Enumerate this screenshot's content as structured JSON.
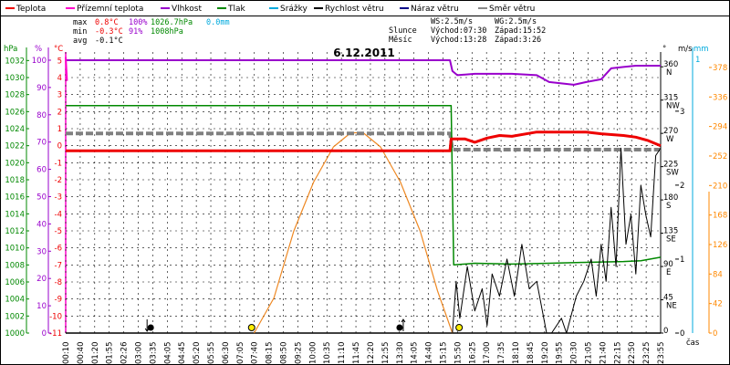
{
  "legend": [
    {
      "label": "Teplota",
      "color": "#ee0000"
    },
    {
      "label": "Přízemní teplota",
      "color": "#ff00cc"
    },
    {
      "label": "Vlhkost",
      "color": "#9900cc"
    },
    {
      "label": "Tlak",
      "color": "#008800"
    },
    {
      "label": "Srážky",
      "color": "#00aadd"
    },
    {
      "label": "Rychlost větru",
      "color": "#000000"
    },
    {
      "label": "Náraz větru",
      "color": "#000088"
    },
    {
      "label": "Směr větru",
      "color": "#888888"
    }
  ],
  "stats": {
    "max_label": "max",
    "max_temp": "0.8°C",
    "max_hum": "100%",
    "max_press": "1026.7hPa",
    "max_rain": "0.0mm",
    "min_label": "min",
    "min_temp": "-0.3°C",
    "min_hum": "91%",
    "min_press": "1008hPa",
    "avg_label": "avg",
    "avg_temp": "-0.1°C"
  },
  "wind_info": {
    "ws": "WS:2.5m/s",
    "wg": "WG:2.5m/s"
  },
  "sun_info": {
    "label": "Slunce",
    "rise": "Východ:07:30",
    "set": "Západ:15:52"
  },
  "moon_info": {
    "label": "Měsíc",
    "rise": "Východ:13:28",
    "set": "Západ:3:26"
  },
  "chart_data": {
    "type": "line",
    "title": "6.12.2011",
    "xlabel": "čas",
    "x_ticks": [
      "00:10",
      "00:40",
      "01:20",
      "01:55",
      "02:26",
      "03:00",
      "03:35",
      "04:05",
      "04:45",
      "05:20",
      "05:55",
      "06:30",
      "07:05",
      "07:40",
      "08:15",
      "08:50",
      "09:25",
      "10:00",
      "10:35",
      "11:10",
      "11:45",
      "12:20",
      "12:55",
      "13:30",
      "14:05",
      "14:40",
      "15:15",
      "15:50",
      "16:25",
      "17:00",
      "17:35",
      "18:10",
      "18:45",
      "19:20",
      "19:55",
      "20:30",
      "21:05",
      "21:40",
      "22:15",
      "22:50",
      "23:25",
      "23:55"
    ],
    "axis_hpa": {
      "unit": "hPa",
      "ticks": [
        "1032",
        "1030",
        "1028",
        "1026",
        "1024",
        "1022",
        "1020",
        "1018",
        "1016",
        "1014",
        "1012",
        "1010",
        "1008",
        "1006",
        "1004",
        "1002",
        "1000"
      ]
    },
    "axis_pct": {
      "unit": "%",
      "ticks": [
        "100",
        "90",
        "80",
        "70",
        "60",
        "50",
        "40",
        "30",
        "20",
        "10",
        "0"
      ]
    },
    "axis_temp": {
      "unit": "°C",
      "ticks": [
        "5",
        "4",
        "3",
        "2",
        "1",
        "0",
        "-1",
        "-2",
        "-3",
        "-4",
        "-5",
        "-6",
        "-7",
        "-8",
        "-9",
        "-10",
        "-11"
      ]
    },
    "axis_dir": {
      "unit": "°",
      "ticks": [
        {
          "deg": "360",
          "dir": "N"
        },
        {
          "deg": "315",
          "dir": "NW"
        },
        {
          "deg": "270",
          "dir": "W"
        },
        {
          "deg": "225",
          "dir": "SW"
        },
        {
          "deg": "180",
          "dir": "S"
        },
        {
          "deg": "135",
          "dir": "SE"
        },
        {
          "deg": "90",
          "dir": "E"
        },
        {
          "deg": "45",
          "dir": "NE"
        },
        {
          "deg": "0",
          "dir": ""
        }
      ]
    },
    "axis_ms": {
      "unit": "m/s",
      "ticks": [
        "3",
        "2",
        "1",
        "0"
      ]
    },
    "axis_mm": {
      "unit": "mm",
      "ticks": [
        "1"
      ]
    },
    "axis_rad": {
      "ticks": [
        "378",
        "336",
        "294",
        "252",
        "210",
        "168",
        "126",
        "84",
        "42",
        "0"
      ]
    },
    "series": [
      {
        "name": "Teplota",
        "points": [
          [
            0,
            -0.3
          ],
          [
            15.5,
            -0.3
          ],
          [
            15.55,
            0.4
          ],
          [
            16.1,
            0.4
          ],
          [
            16.5,
            0.2
          ],
          [
            17.0,
            0.45
          ],
          [
            17.5,
            0.6
          ],
          [
            18.0,
            0.55
          ],
          [
            19.0,
            0.8
          ],
          [
            20.0,
            0.8
          ],
          [
            21.0,
            0.8
          ],
          [
            21.6,
            0.7
          ],
          [
            22.5,
            0.6
          ],
          [
            23.0,
            0.5
          ],
          [
            23.5,
            0.3
          ],
          [
            24,
            0.0
          ]
        ]
      },
      {
        "name": "Přízemní teplota",
        "points": [
          [
            0,
            5.2
          ],
          [
            0.05,
            3.8
          ]
        ]
      },
      {
        "name": "Vlhkost",
        "points": [
          [
            0,
            100
          ],
          [
            15.5,
            100
          ],
          [
            15.6,
            96
          ],
          [
            15.8,
            94.5
          ],
          [
            16.5,
            95
          ],
          [
            17.0,
            95
          ],
          [
            18.0,
            95
          ],
          [
            19.0,
            94.5
          ],
          [
            19.5,
            92
          ],
          [
            20.0,
            91.5
          ],
          [
            20.5,
            91
          ],
          [
            21.0,
            92
          ],
          [
            21.6,
            93
          ],
          [
            22.0,
            97
          ],
          [
            22.5,
            97.5
          ],
          [
            23.0,
            98
          ],
          [
            24,
            98
          ]
        ]
      },
      {
        "name": "Tlak",
        "points": [
          [
            0,
            1026.7
          ],
          [
            15.55,
            1026.7
          ],
          [
            15.65,
            1008
          ],
          [
            16.5,
            1008.2
          ],
          [
            18.0,
            1008.1
          ],
          [
            19.5,
            1008.2
          ],
          [
            21.0,
            1008.3
          ],
          [
            22.5,
            1008.4
          ],
          [
            23.2,
            1008.5
          ],
          [
            24,
            1008.9
          ]
        ]
      },
      {
        "name": "Rychlost větru",
        "points": [
          [
            15.6,
            0
          ],
          [
            15.75,
            0.7
          ],
          [
            15.9,
            0.2
          ],
          [
            16.2,
            0.9
          ],
          [
            16.5,
            0.3
          ],
          [
            16.8,
            0.6
          ],
          [
            17.0,
            0.1
          ],
          [
            17.2,
            0.8
          ],
          [
            17.5,
            0.5
          ],
          [
            17.8,
            1.0
          ],
          [
            18.1,
            0.5
          ],
          [
            18.4,
            1.2
          ],
          [
            18.7,
            0.6
          ],
          [
            19.0,
            0.7
          ],
          [
            19.4,
            0
          ],
          [
            19.6,
            0
          ],
          [
            20.0,
            0.2
          ],
          [
            20.2,
            0
          ],
          [
            20.6,
            0.5
          ],
          [
            20.9,
            0.7
          ],
          [
            21.2,
            1.0
          ],
          [
            21.4,
            0.5
          ],
          [
            21.6,
            1.2
          ],
          [
            21.8,
            0.7
          ],
          [
            22.0,
            1.7
          ],
          [
            22.2,
            0.9
          ],
          [
            22.4,
            2.5
          ],
          [
            22.6,
            1.2
          ],
          [
            22.8,
            1.6
          ],
          [
            23.0,
            0.8
          ],
          [
            23.2,
            2.0
          ],
          [
            23.4,
            1.6
          ],
          [
            23.6,
            1.3
          ],
          [
            23.8,
            2.4
          ],
          [
            24,
            2.5
          ]
        ]
      },
      {
        "name": "Směr větru",
        "points": [
          [
            0,
            270
          ],
          [
            15.5,
            270
          ],
          [
            15.6,
            248
          ],
          [
            24,
            248
          ]
        ]
      },
      {
        "name": "Radiace",
        "points": [
          [
            7.6,
            0
          ],
          [
            8.4,
            50
          ],
          [
            9.2,
            145
          ],
          [
            10.0,
            215
          ],
          [
            10.8,
            265
          ],
          [
            11.5,
            285
          ],
          [
            12.0,
            285
          ],
          [
            12.7,
            265
          ],
          [
            13.5,
            215
          ],
          [
            14.3,
            145
          ],
          [
            15.0,
            60
          ],
          [
            15.6,
            0
          ]
        ]
      }
    ],
    "events": [
      {
        "kind": "moonset",
        "time": "03:26",
        "x": 3.43
      },
      {
        "kind": "sunrise",
        "time": "07:30",
        "x": 7.5
      },
      {
        "kind": "moonrise",
        "time": "13:28",
        "x": 13.47
      },
      {
        "kind": "sunset",
        "time": "15:52",
        "x": 15.87
      }
    ],
    "xlim": [
      0,
      24
    ],
    "ylim_temp": [
      -11,
      5.5
    ],
    "ylim_hpa": [
      1000,
      1033
    ],
    "ylim_pct": [
      0,
      103
    ],
    "ylim_dir": [
      0,
      380
    ],
    "ylim_ms": [
      0,
      3.8
    ],
    "ylim_rad": [
      0,
      400
    ]
  }
}
